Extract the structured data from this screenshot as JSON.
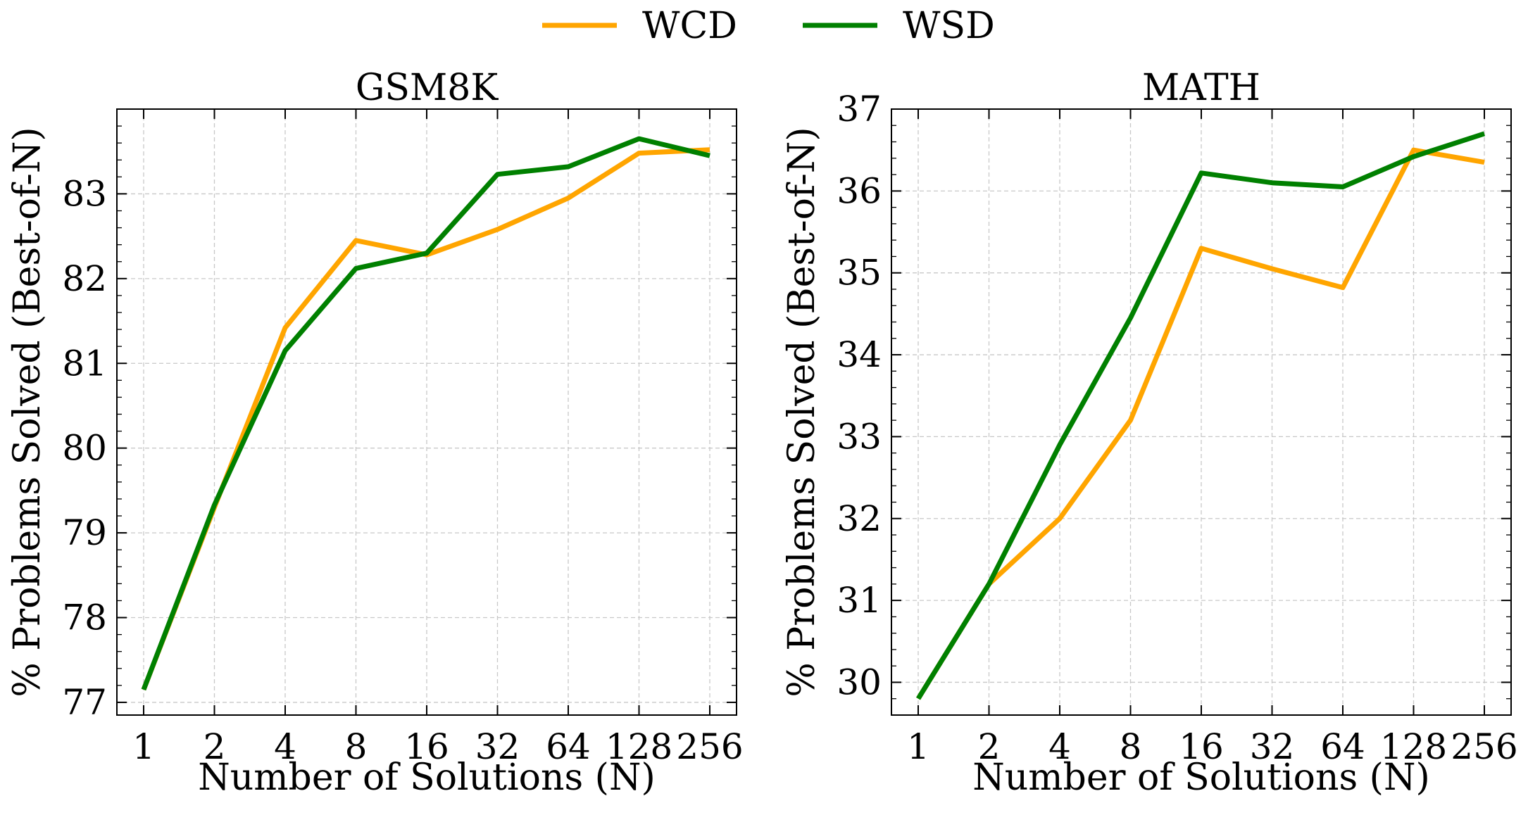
{
  "legend": {
    "items": [
      {
        "label": "WCD",
        "color": "#FFA500"
      },
      {
        "label": "WSD",
        "color": "#008000"
      }
    ]
  },
  "chart_data": [
    {
      "type": "line",
      "title": "GSM8K",
      "xlabel": "Number of Solutions (N)",
      "ylabel": "% Problems Solved (Best-of-N)",
      "categories": [
        "1",
        "2",
        "4",
        "8",
        "16",
        "32",
        "64",
        "128",
        "256"
      ],
      "ylim": [
        76.85,
        84.0
      ],
      "yticks": [
        77,
        78,
        79,
        80,
        81,
        82,
        83
      ],
      "series": [
        {
          "name": "WCD",
          "color": "#FFA500",
          "values": [
            77.15,
            79.3,
            81.42,
            82.45,
            82.28,
            82.58,
            82.95,
            83.48,
            83.52
          ]
        },
        {
          "name": "WSD",
          "color": "#008000",
          "values": [
            77.15,
            79.33,
            81.15,
            82.12,
            82.3,
            83.23,
            83.32,
            83.65,
            83.45
          ]
        }
      ],
      "grid": true
    },
    {
      "type": "line",
      "title": "MATH",
      "xlabel": "Number of Solutions (N)",
      "ylabel": "% Problems Solved (Best-of-N)",
      "categories": [
        "1",
        "2",
        "4",
        "8",
        "16",
        "32",
        "64",
        "128",
        "256"
      ],
      "ylim": [
        29.6,
        37.0
      ],
      "yticks": [
        30,
        31,
        32,
        33,
        34,
        35,
        36,
        37
      ],
      "series": [
        {
          "name": "WCD",
          "color": "#FFA500",
          "values": [
            29.8,
            31.2,
            32.0,
            33.2,
            35.3,
            35.05,
            34.82,
            36.5,
            36.35
          ]
        },
        {
          "name": "WSD",
          "color": "#008000",
          "values": [
            29.8,
            31.2,
            32.9,
            34.45,
            36.22,
            36.1,
            36.05,
            36.42,
            36.7
          ]
        }
      ],
      "grid": true
    }
  ]
}
